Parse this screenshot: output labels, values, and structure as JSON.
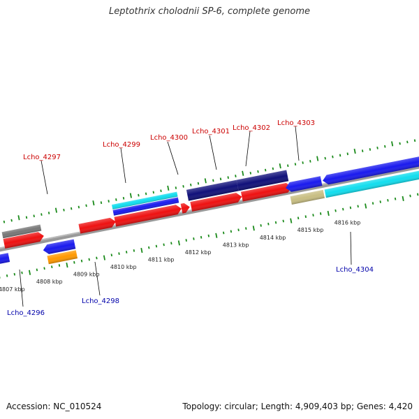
{
  "title": "Leptothrix cholodnii SP-6, complete genome",
  "footer": {
    "accession": "Accession: NC_010524",
    "topology": "Topology: circular; Length: 4,909,403 bp; Genes: 4,420"
  },
  "colors": {
    "cds_red": "#ee1111",
    "gene_blue": "#1a1aee",
    "navy": "#10107a",
    "cyan": "#11ddee",
    "orange": "#ff9900",
    "gray": "#777777",
    "khaki": "#c8be82",
    "backbone": "#999999",
    "tick_green": "#1a8a1a",
    "label_red": "#cc0000",
    "label_blue": "#0000aa"
  },
  "scale_labels": [
    "4807 kbp",
    "4808 kbp",
    "4809 kbp",
    "4810 kbp",
    "4811 kbp",
    "4812 kbp",
    "4813 kbp",
    "4814 kbp",
    "4815 kbp",
    "4816 kbp"
  ],
  "gene_labels": {
    "forward": [
      "Lcho_4297",
      "Lcho_4299",
      "Lcho_4300",
      "Lcho_4301",
      "Lcho_4302",
      "Lcho_4303"
    ],
    "reverse": [
      "Lcho_4296",
      "Lcho_4298",
      "Lcho_4304"
    ]
  }
}
